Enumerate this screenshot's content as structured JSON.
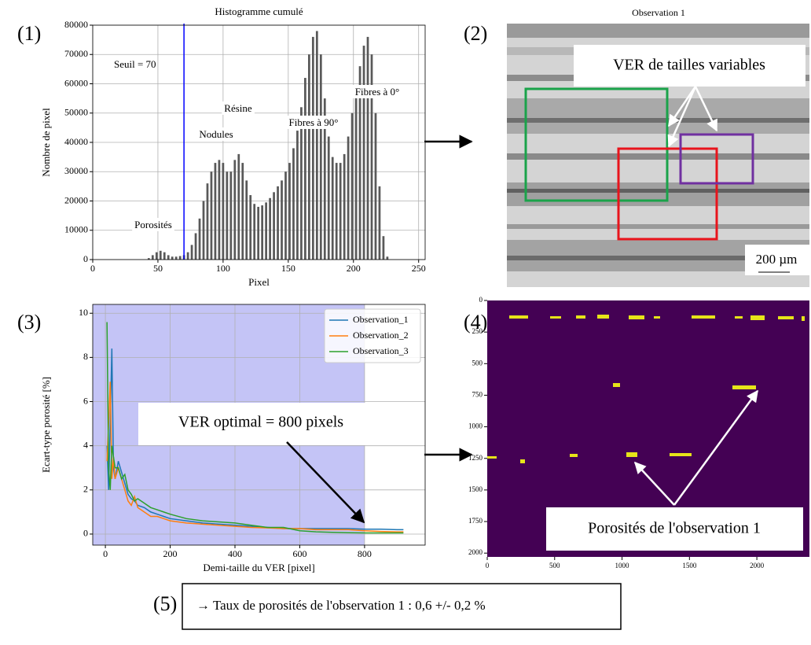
{
  "panels": [
    "(1)",
    "(2)",
    "(3)",
    "(4)",
    "(5)"
  ],
  "conclusion": "→ Taux de porosités de l'observation 1 : 0,6 +/- 0,2 %",
  "chart_data": [
    {
      "type": "bar",
      "title": "Histogramme cumulé",
      "xlabel": "Pixel",
      "ylabel": "Nombre de pixel",
      "x": [
        40,
        43,
        46,
        49,
        52,
        55,
        58,
        61,
        64,
        67,
        70,
        73,
        76,
        79,
        82,
        85,
        88,
        91,
        94,
        97,
        100,
        103,
        106,
        109,
        112,
        115,
        118,
        121,
        124,
        127,
        130,
        133,
        136,
        139,
        142,
        145,
        148,
        151,
        154,
        157,
        160,
        163,
        166,
        169,
        172,
        175,
        178,
        181,
        184,
        187,
        190,
        193,
        196,
        199,
        202,
        205,
        208,
        211,
        214,
        217,
        220,
        223,
        226
      ],
      "values": [
        0,
        500,
        1500,
        2500,
        3000,
        2500,
        1500,
        1000,
        1000,
        1200,
        1500,
        2500,
        5000,
        9000,
        14000,
        20000,
        26000,
        30000,
        33000,
        34000,
        33000,
        30000,
        30000,
        34000,
        36000,
        33000,
        27000,
        22000,
        19000,
        18000,
        18500,
        19500,
        21000,
        23000,
        25000,
        27000,
        30000,
        33000,
        38000,
        44000,
        52000,
        62000,
        70000,
        76000,
        78000,
        70000,
        55000,
        42000,
        35000,
        33000,
        33000,
        36000,
        42000,
        50000,
        58000,
        66000,
        73000,
        76000,
        70000,
        50000,
        25000,
        8000,
        1000
      ],
      "color": "#595959",
      "xlim": [
        0,
        255
      ],
      "ylim": [
        0,
        80000
      ],
      "xticks": [
        0,
        50,
        100,
        150,
        200,
        250
      ],
      "yticks": [
        0,
        10000,
        20000,
        30000,
        40000,
        50000,
        60000,
        70000,
        80000
      ],
      "grid": true,
      "threshold": 70,
      "threshold_label": "Seuil = 70",
      "threshold_color": "#0000ff",
      "annotations": [
        "Porosités",
        "Nodules",
        "Résine",
        "Fibres à 90°",
        "Fibres à 0°"
      ]
    },
    {
      "type": "image",
      "title": "Observation 1",
      "annotation": "VER de tailles variables",
      "scale_label": "200 µm"
    },
    {
      "type": "line",
      "xlabel": "Demi-taille du VER [pixel]",
      "ylabel": "Ecart-type porosité [%]",
      "x": [
        5,
        10,
        15,
        20,
        25,
        30,
        40,
        50,
        60,
        70,
        80,
        90,
        100,
        120,
        140,
        160,
        180,
        200,
        250,
        300,
        350,
        400,
        450,
        500,
        550,
        600,
        650,
        700,
        750,
        800,
        850,
        900,
        920
      ],
      "series": [
        {
          "name": "Observation_1",
          "color": "#1f77b4",
          "values": [
            4,
            2,
            5,
            8.4,
            3,
            2.5,
            3.3,
            2.8,
            2.3,
            1.8,
            1.6,
            1.5,
            1.3,
            1.2,
            1.0,
            0.9,
            0.8,
            0.7,
            0.6,
            0.5,
            0.45,
            0.4,
            0.35,
            0.3,
            0.25,
            0.25,
            0.25,
            0.25,
            0.25,
            0.22,
            0.22,
            0.2,
            0.2
          ]
        },
        {
          "name": "Observation_2",
          "color": "#ff7f0e",
          "values": [
            3.3,
            5,
            6.9,
            2.5,
            3.5,
            2.5,
            3,
            2.5,
            2,
            1.5,
            1.3,
            1.7,
            1.2,
            1.0,
            0.8,
            0.8,
            0.7,
            0.6,
            0.5,
            0.45,
            0.4,
            0.35,
            0.3,
            0.28,
            0.25,
            0.25,
            0.2,
            0.2,
            0.2,
            0.15,
            0.12,
            0.1,
            0.1
          ]
        },
        {
          "name": "Observation_3",
          "color": "#2ca02c",
          "values": [
            9.6,
            3,
            2,
            4,
            3.5,
            3,
            3,
            2.5,
            2.7,
            2.0,
            1.8,
            1.5,
            1.6,
            1.4,
            1.2,
            1.1,
            1.0,
            0.9,
            0.7,
            0.6,
            0.55,
            0.5,
            0.4,
            0.3,
            0.3,
            0.15,
            0.1,
            0.08,
            0.06,
            0.05,
            0.05,
            0.05,
            0.05
          ]
        }
      ],
      "xlim": [
        -39,
        987
      ],
      "ylim": [
        -0.5,
        10.4
      ],
      "xticks": [
        0,
        200,
        400,
        600,
        800
      ],
      "yticks": [
        0,
        2,
        4,
        6,
        8,
        10
      ],
      "grid": true,
      "legend": "upper right",
      "vspan_end": 800,
      "vspan_color": "#c4c4f6",
      "annotation": "VER optimal = 800 pixels"
    },
    {
      "type": "image",
      "xlim": [
        0,
        2390
      ],
      "ylim": [
        0,
        2030
      ],
      "y_inverted": true,
      "xticks": [
        0,
        500,
        1000,
        1500,
        2000
      ],
      "yticks": [
        0,
        250,
        500,
        750,
        1000,
        1250,
        1500,
        1750,
        2000
      ],
      "annotation": "Porosités de l'observation 1"
    }
  ]
}
